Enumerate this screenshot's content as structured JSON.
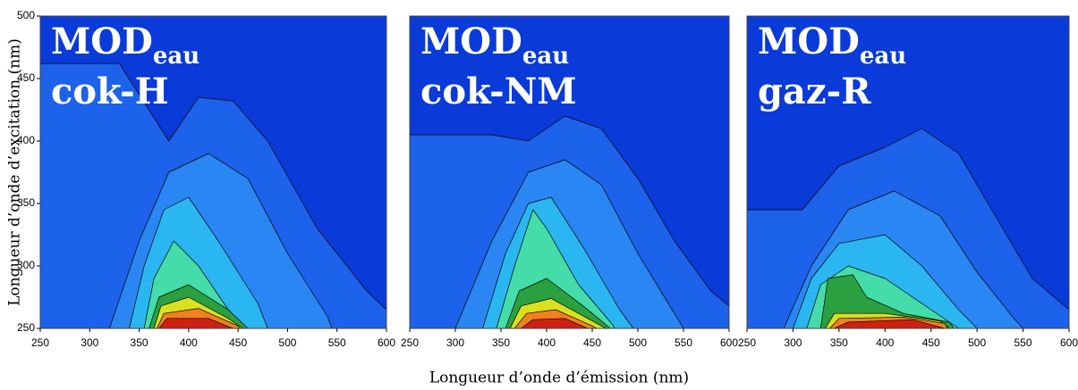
{
  "xlabel": "Longueur d’onde d’émission (nm)",
  "ylabel": "Longueur d’onde d’excitation (nm)",
  "chart_data": [
    {
      "type": "contour",
      "label": "MOD",
      "label_sub": "eau",
      "name": "cok-H",
      "background": "#0a3ad8",
      "xlim": [
        250,
        600
      ],
      "ylim": [
        250,
        500
      ],
      "xticks": [
        250,
        300,
        350,
        400,
        450,
        500,
        550,
        600
      ],
      "yticks": [
        250,
        300,
        350,
        400,
        450,
        500
      ],
      "contours": [
        {
          "color": "#1c62ea",
          "x": [
            250,
            250,
            330,
            380,
            410,
            445,
            480,
            530,
            580,
            600,
            600
          ],
          "y": [
            250,
            462,
            462,
            400,
            435,
            432,
            400,
            330,
            280,
            265,
            250
          ]
        },
        {
          "color": "#2a86f2",
          "x": [
            320,
            350,
            380,
            420,
            460,
            500,
            540,
            545
          ],
          "y": [
            250,
            320,
            375,
            390,
            370,
            310,
            260,
            250
          ]
        },
        {
          "color": "#2ab6f0",
          "x": [
            340,
            355,
            375,
            400,
            430,
            470,
            480
          ],
          "y": [
            250,
            300,
            345,
            355,
            320,
            270,
            250
          ]
        },
        {
          "color": "#44dca8",
          "x": [
            355,
            365,
            385,
            410,
            440,
            455
          ],
          "y": [
            250,
            290,
            320,
            300,
            265,
            250
          ]
        },
        {
          "color": "#2aa040",
          "x": [
            360,
            370,
            400,
            440,
            460
          ],
          "y": [
            250,
            275,
            285,
            265,
            250
          ]
        },
        {
          "color": "#d8e020",
          "x": [
            365,
            372,
            400,
            440,
            455
          ],
          "y": [
            250,
            268,
            275,
            258,
            250
          ]
        },
        {
          "color": "#f08020",
          "x": [
            368,
            375,
            410,
            450,
            452
          ],
          "y": [
            250,
            262,
            266,
            252,
            250
          ]
        },
        {
          "color": "#d02010",
          "x": [
            370,
            378,
            420,
            445
          ],
          "y": [
            250,
            258,
            258,
            250
          ]
        }
      ]
    },
    {
      "type": "contour",
      "label": "MOD",
      "label_sub": "eau",
      "name": "cok-NM",
      "background": "#0a3ad8",
      "xlim": [
        250,
        600
      ],
      "xticks": [
        250,
        300,
        350,
        400,
        450,
        500,
        550,
        600
      ],
      "ylim": [
        250,
        500
      ],
      "contours": [
        {
          "color": "#1c62ea",
          "x": [
            250,
            250,
            340,
            380,
            420,
            460,
            500,
            540,
            580,
            600,
            600
          ],
          "y": [
            250,
            405,
            405,
            400,
            420,
            410,
            370,
            320,
            280,
            268,
            250
          ]
        },
        {
          "color": "#2a86f2",
          "x": [
            300,
            340,
            380,
            420,
            460,
            500,
            540,
            550
          ],
          "y": [
            250,
            320,
            375,
            385,
            365,
            310,
            262,
            250
          ]
        },
        {
          "color": "#2ab6f0",
          "x": [
            330,
            355,
            380,
            405,
            440,
            480,
            495
          ],
          "y": [
            250,
            310,
            350,
            355,
            315,
            265,
            250
          ]
        },
        {
          "color": "#44dca8",
          "x": [
            345,
            365,
            385,
            400,
            435,
            470,
            475
          ],
          "y": [
            250,
            300,
            345,
            330,
            285,
            255,
            250
          ]
        },
        {
          "color": "#2aa040",
          "x": [
            355,
            370,
            400,
            440,
            470
          ],
          "y": [
            250,
            280,
            290,
            268,
            250
          ]
        },
        {
          "color": "#d8e020",
          "x": [
            360,
            372,
            405,
            445,
            465
          ],
          "y": [
            250,
            268,
            274,
            258,
            250
          ]
        },
        {
          "color": "#f08020",
          "x": [
            365,
            378,
            410,
            450,
            455
          ],
          "y": [
            250,
            262,
            265,
            252,
            250
          ]
        },
        {
          "color": "#d02010",
          "x": [
            372,
            385,
            420,
            445
          ],
          "y": [
            250,
            257,
            258,
            250
          ]
        }
      ]
    },
    {
      "type": "contour",
      "label": "MOD",
      "label_sub": "eau",
      "name": "gaz-R",
      "background": "#0a3ad8",
      "xlim": [
        250,
        600
      ],
      "xticks": [
        250,
        300,
        350,
        400,
        450,
        500,
        550,
        600
      ],
      "ylim": [
        250,
        500
      ],
      "contours": [
        {
          "color": "#1c62ea",
          "x": [
            250,
            250,
            310,
            350,
            400,
            440,
            480,
            520,
            560,
            600,
            600
          ],
          "y": [
            250,
            345,
            345,
            380,
            395,
            410,
            390,
            340,
            290,
            265,
            250
          ]
        },
        {
          "color": "#2a86f2",
          "x": [
            290,
            320,
            360,
            410,
            460,
            500,
            540,
            550
          ],
          "y": [
            250,
            300,
            345,
            360,
            340,
            295,
            258,
            250
          ]
        },
        {
          "color": "#2ab6f0",
          "x": [
            300,
            320,
            350,
            400,
            440,
            480,
            500
          ],
          "y": [
            250,
            290,
            318,
            325,
            300,
            265,
            250
          ]
        },
        {
          "color": "#44dca8",
          "x": [
            315,
            330,
            360,
            400,
            440,
            470,
            480
          ],
          "y": [
            250,
            285,
            300,
            290,
            270,
            255,
            250
          ]
        },
        {
          "color": "#2aa040",
          "x": [
            330,
            338,
            365,
            380,
            420,
            470,
            475
          ],
          "y": [
            250,
            290,
            293,
            275,
            262,
            255,
            250
          ]
        },
        {
          "color": "#d8e020",
          "x": [
            335,
            345,
            400,
            460,
            470
          ],
          "y": [
            250,
            262,
            262,
            256,
            250
          ]
        },
        {
          "color": "#f08020",
          "x": [
            340,
            350,
            420,
            465,
            468
          ],
          "y": [
            250,
            258,
            259,
            254,
            250
          ]
        },
        {
          "color": "#d02010",
          "x": [
            345,
            360,
            430,
            465
          ],
          "y": [
            250,
            255,
            257,
            250
          ]
        }
      ]
    }
  ]
}
